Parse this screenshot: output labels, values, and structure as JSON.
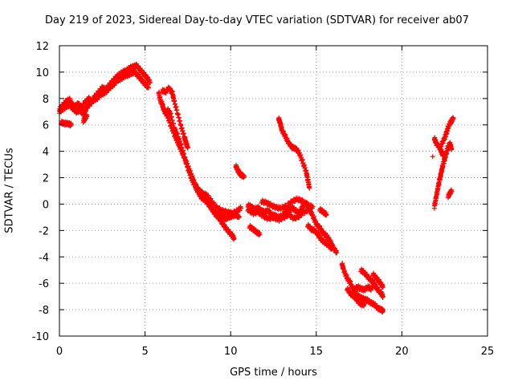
{
  "chart_data": {
    "type": "scatter",
    "title": "Day 219 of 2023, Sidereal Day-to-day VTEC variation (SDTVAR) for receiver ab07",
    "xlabel": "GPS time / hours",
    "ylabel": "SDTVAR / TECUs",
    "xlim": [
      0,
      25
    ],
    "ylim": [
      -10,
      12
    ],
    "xticks": [
      0,
      5,
      10,
      15,
      20,
      25
    ],
    "yticks": [
      -10,
      -8,
      -6,
      -4,
      -2,
      0,
      2,
      4,
      6,
      8,
      10,
      12
    ],
    "grid": true,
    "marker": "+",
    "series": [
      {
        "name": "SDTVAR",
        "color": "#ff0000",
        "segments": [
          [
            [
              0.0,
              7.2
            ],
            [
              0.2,
              7.5
            ],
            [
              0.4,
              7.8
            ],
            [
              0.6,
              7.9
            ],
            [
              0.7,
              7.6
            ],
            [
              0.9,
              7.4
            ],
            [
              1.1,
              7.6
            ],
            [
              1.3,
              7.3
            ],
            [
              1.5,
              7.7
            ],
            [
              1.7,
              8.0
            ],
            [
              1.9,
              7.8
            ],
            [
              2.1,
              8.2
            ],
            [
              2.3,
              8.5
            ],
            [
              2.5,
              8.8
            ],
            [
              2.7,
              8.7
            ],
            [
              2.9,
              9.0
            ],
            [
              3.1,
              9.3
            ],
            [
              3.3,
              9.6
            ],
            [
              3.5,
              9.8
            ],
            [
              3.7,
              10.0
            ],
            [
              3.9,
              10.1
            ],
            [
              4.1,
              10.3
            ],
            [
              4.3,
              10.4
            ],
            [
              4.5,
              10.5
            ],
            [
              4.7,
              10.2
            ],
            [
              4.9,
              9.9
            ],
            [
              5.1,
              9.6
            ],
            [
              5.3,
              9.2
            ]
          ],
          [
            [
              0.0,
              7.0
            ],
            [
              0.2,
              7.2
            ],
            [
              0.4,
              7.4
            ],
            [
              0.6,
              7.5
            ],
            [
              0.8,
              7.2
            ],
            [
              1.0,
              7.0
            ],
            [
              1.2,
              7.1
            ],
            [
              1.4,
              6.8
            ],
            [
              1.6,
              7.3
            ],
            [
              1.8,
              7.6
            ],
            [
              2.0,
              7.9
            ],
            [
              2.2,
              8.0
            ],
            [
              2.4,
              8.3
            ],
            [
              2.6,
              8.4
            ],
            [
              2.8,
              8.6
            ],
            [
              3.0,
              8.9
            ],
            [
              3.2,
              9.1
            ],
            [
              3.4,
              9.4
            ],
            [
              3.6,
              9.5
            ],
            [
              3.8,
              9.7
            ],
            [
              4.0,
              9.8
            ],
            [
              4.2,
              9.9
            ],
            [
              4.4,
              10.0
            ],
            [
              4.6,
              9.7
            ],
            [
              4.8,
              9.4
            ],
            [
              5.0,
              9.1
            ],
            [
              5.2,
              8.8
            ]
          ],
          [
            [
              0.1,
              6.2
            ],
            [
              0.3,
              6.1
            ],
            [
              0.5,
              6.1
            ],
            [
              0.7,
              6.0
            ]
          ],
          [
            [
              1.4,
              6.3
            ],
            [
              1.5,
              6.5
            ],
            [
              1.6,
              6.7
            ]
          ],
          [
            [
              5.8,
              8.5
            ],
            [
              5.9,
              7.8
            ],
            [
              6.0,
              7.6
            ],
            [
              6.1,
              7.1
            ],
            [
              6.3,
              6.7
            ],
            [
              6.5,
              6.0
            ],
            [
              6.7,
              5.3
            ],
            [
              6.9,
              4.7
            ],
            [
              7.1,
              4.1
            ],
            [
              7.3,
              3.5
            ],
            [
              7.5,
              2.9
            ],
            [
              7.7,
              2.2
            ],
            [
              7.9,
              1.6
            ],
            [
              8.1,
              1.1
            ],
            [
              8.3,
              0.9
            ],
            [
              8.5,
              0.6
            ],
            [
              8.7,
              0.2
            ],
            [
              8.9,
              -0.3
            ],
            [
              9.1,
              -0.8
            ],
            [
              9.3,
              -1.0
            ],
            [
              9.5,
              -1.4
            ],
            [
              9.7,
              -1.8
            ],
            [
              9.9,
              -2.1
            ],
            [
              10.1,
              -2.4
            ],
            [
              10.2,
              -2.6
            ]
          ],
          [
            [
              6.0,
              8.6
            ],
            [
              6.2,
              8.5
            ],
            [
              6.4,
              8.8
            ],
            [
              6.6,
              8.4
            ],
            [
              6.7,
              7.8
            ],
            [
              6.9,
              6.9
            ],
            [
              7.1,
              5.9
            ],
            [
              7.3,
              5.1
            ],
            [
              7.4,
              4.6
            ],
            [
              7.5,
              4.3
            ]
          ],
          [
            [
              6.3,
              7.2
            ],
            [
              6.5,
              6.8
            ],
            [
              6.7,
              5.8
            ],
            [
              6.9,
              5.2
            ],
            [
              7.1,
              4.5
            ],
            [
              7.3,
              3.6
            ],
            [
              7.5,
              2.7
            ],
            [
              7.7,
              2.0
            ],
            [
              7.9,
              1.4
            ],
            [
              8.1,
              0.9
            ],
            [
              8.3,
              0.5
            ],
            [
              8.5,
              0.3
            ],
            [
              8.7,
              0.0
            ],
            [
              8.9,
              -0.4
            ],
            [
              9.1,
              -0.7
            ],
            [
              9.3,
              -0.6
            ],
            [
              9.5,
              -0.9
            ],
            [
              9.7,
              -1.1
            ],
            [
              9.9,
              -1.0
            ],
            [
              10.1,
              -0.9
            ],
            [
              10.3,
              -0.8
            ],
            [
              10.5,
              -1.0
            ]
          ],
          [
            [
              8.3,
              0.8
            ],
            [
              8.6,
              0.7
            ],
            [
              8.9,
              0.2
            ],
            [
              9.2,
              -0.3
            ],
            [
              9.5,
              -0.5
            ],
            [
              9.8,
              -0.6
            ],
            [
              10.1,
              -0.7
            ],
            [
              10.4,
              -0.5
            ],
            [
              10.6,
              -0.3
            ]
          ],
          [
            [
              10.3,
              2.9
            ],
            [
              10.4,
              2.6
            ],
            [
              10.5,
              2.4
            ],
            [
              10.6,
              2.2
            ],
            [
              10.8,
              2.1
            ]
          ],
          [
            [
              11.0,
              -0.1
            ],
            [
              11.2,
              -0.2
            ],
            [
              11.4,
              -0.4
            ],
            [
              11.6,
              -0.3
            ],
            [
              11.8,
              -0.5
            ],
            [
              12.0,
              -0.6
            ],
            [
              12.2,
              -0.5
            ],
            [
              12.4,
              -0.8
            ],
            [
              12.6,
              -0.9
            ],
            [
              12.8,
              -1.0
            ],
            [
              13.0,
              -0.9
            ],
            [
              13.2,
              -0.6
            ],
            [
              13.4,
              -0.5
            ],
            [
              13.6,
              -0.3
            ],
            [
              13.8,
              -0.5
            ],
            [
              14.0,
              -0.7
            ],
            [
              14.2,
              -0.2
            ],
            [
              14.4,
              0.1
            ],
            [
              14.6,
              -0.2
            ]
          ],
          [
            [
              11.0,
              -0.4
            ],
            [
              11.3,
              -0.7
            ],
            [
              11.6,
              -0.6
            ],
            [
              11.9,
              -0.9
            ],
            [
              12.2,
              -1.1
            ],
            [
              12.5,
              -1.0
            ],
            [
              12.8,
              -1.2
            ],
            [
              13.1,
              -1.0
            ],
            [
              13.4,
              -0.8
            ],
            [
              13.7,
              -1.1
            ],
            [
              14.0,
              -0.9
            ],
            [
              14.3,
              -0.6
            ],
            [
              14.6,
              -0.4
            ]
          ],
          [
            [
              11.8,
              0.2
            ],
            [
              12.1,
              0.1
            ],
            [
              12.4,
              -0.1
            ],
            [
              12.7,
              -0.3
            ],
            [
              13.0,
              -0.3
            ],
            [
              13.3,
              -0.1
            ],
            [
              13.6,
              0.2
            ],
            [
              13.9,
              0.4
            ],
            [
              14.2,
              0.2
            ],
            [
              14.5,
              -0.1
            ],
            [
              14.8,
              -0.2
            ]
          ],
          [
            [
              11.1,
              -1.7
            ],
            [
              11.3,
              -1.9
            ],
            [
              11.5,
              -2.1
            ],
            [
              11.7,
              -2.3
            ]
          ],
          [
            [
              12.8,
              6.5
            ],
            [
              12.9,
              6.1
            ],
            [
              13.0,
              5.6
            ],
            [
              13.2,
              5.1
            ],
            [
              13.4,
              4.6
            ],
            [
              13.6,
              4.3
            ],
            [
              13.8,
              4.2
            ],
            [
              14.0,
              3.9
            ],
            [
              14.2,
              3.2
            ],
            [
              14.4,
              2.5
            ],
            [
              14.5,
              1.9
            ],
            [
              14.6,
              1.2
            ]
          ],
          [
            [
              14.6,
              -0.4
            ],
            [
              14.8,
              -0.9
            ],
            [
              15.0,
              -1.5
            ],
            [
              15.2,
              -1.8
            ],
            [
              15.4,
              -2.2
            ],
            [
              15.6,
              -2.4
            ],
            [
              15.8,
              -2.8
            ],
            [
              16.0,
              -3.3
            ],
            [
              16.2,
              -3.7
            ]
          ],
          [
            [
              14.5,
              -1.6
            ],
            [
              14.7,
              -1.9
            ],
            [
              14.9,
              -2.0
            ],
            [
              15.1,
              -2.3
            ],
            [
              15.3,
              -2.7
            ],
            [
              15.5,
              -2.9
            ],
            [
              15.7,
              -3.1
            ],
            [
              15.9,
              -3.4
            ]
          ],
          [
            [
              15.2,
              -0.4
            ],
            [
              15.4,
              -0.6
            ],
            [
              15.6,
              -0.8
            ]
          ],
          [
            [
              16.5,
              -4.5
            ],
            [
              16.6,
              -5.0
            ],
            [
              16.8,
              -5.6
            ],
            [
              17.0,
              -6.0
            ],
            [
              17.2,
              -6.6
            ],
            [
              17.4,
              -6.9
            ],
            [
              17.6,
              -7.1
            ],
            [
              17.8,
              -7.2
            ],
            [
              18.0,
              -7.3
            ],
            [
              18.2,
              -7.5
            ],
            [
              18.4,
              -7.6
            ],
            [
              18.6,
              -7.9
            ],
            [
              18.8,
              -8.0
            ],
            [
              18.9,
              -8.1
            ]
          ],
          [
            [
              16.8,
              -6.4
            ],
            [
              17.0,
              -6.8
            ],
            [
              17.2,
              -7.0
            ],
            [
              17.4,
              -7.3
            ],
            [
              17.6,
              -7.6
            ],
            [
              17.8,
              -7.6
            ]
          ],
          [
            [
              17.2,
              -6.5
            ],
            [
              17.4,
              -6.3
            ],
            [
              17.6,
              -6.4
            ],
            [
              17.8,
              -6.5
            ],
            [
              18.0,
              -6.3
            ],
            [
              18.2,
              -6.4
            ],
            [
              18.4,
              -6.1
            ],
            [
              18.6,
              -6.5
            ],
            [
              18.8,
              -6.8
            ],
            [
              18.9,
              -7.0
            ]
          ],
          [
            [
              17.6,
              -5.0
            ],
            [
              17.8,
              -5.2
            ],
            [
              18.0,
              -5.5
            ],
            [
              18.2,
              -5.8
            ],
            [
              18.4,
              -6.0
            ]
          ],
          [
            [
              18.3,
              -5.3
            ],
            [
              18.5,
              -5.6
            ],
            [
              18.7,
              -5.9
            ],
            [
              18.9,
              -6.3
            ]
          ],
          [
            [
              21.8,
              3.6
            ]
          ],
          [
            [
              21.9,
              5.0
            ],
            [
              22.0,
              4.6
            ],
            [
              22.2,
              4.3
            ],
            [
              22.3,
              4.0
            ],
            [
              22.4,
              3.7
            ]
          ],
          [
            [
              21.9,
              -0.2
            ],
            [
              22.0,
              0.5
            ],
            [
              22.1,
              1.2
            ],
            [
              22.2,
              1.8
            ],
            [
              22.3,
              2.4
            ],
            [
              22.4,
              3.0
            ],
            [
              22.5,
              3.4
            ],
            [
              22.6,
              3.9
            ],
            [
              22.7,
              4.3
            ],
            [
              22.8,
              4.6
            ],
            [
              22.9,
              4.2
            ]
          ],
          [
            [
              22.3,
              4.5
            ],
            [
              22.5,
              5.0
            ],
            [
              22.6,
              5.4
            ],
            [
              22.7,
              5.8
            ],
            [
              22.8,
              6.1
            ],
            [
              22.9,
              6.3
            ],
            [
              23.0,
              6.5
            ]
          ],
          [
            [
              22.7,
              0.6
            ],
            [
              22.8,
              0.8
            ],
            [
              22.9,
              1.0
            ]
          ]
        ]
      }
    ]
  }
}
